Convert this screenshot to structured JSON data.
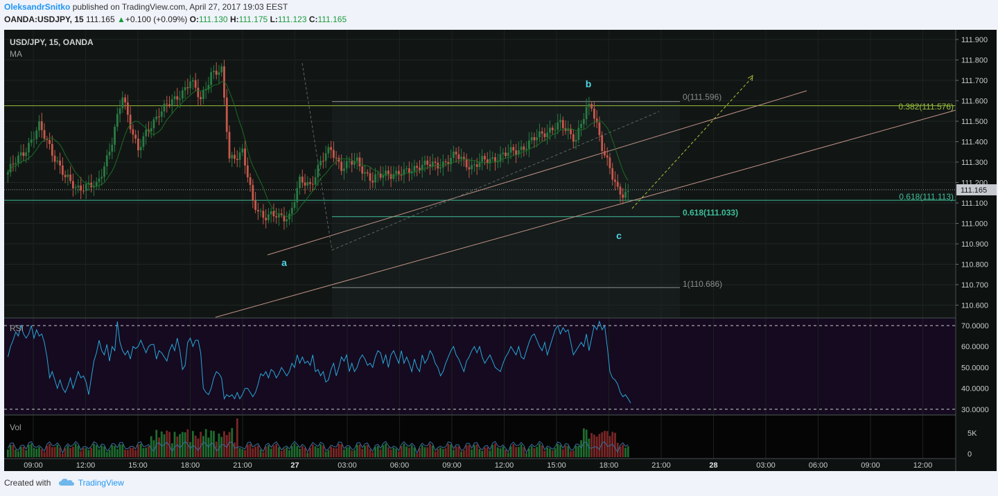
{
  "header": {
    "author": "OleksandrSnitko",
    "published_text": " published on TradingView.com, April 27, 2017 19:03 EEST",
    "symbol": "OANDA:USDJPY, 15",
    "price": "111.165",
    "change": "+0.100 (+0.09%)",
    "o_label": "O:",
    "o_value": "111.130",
    "h_label": "H:",
    "h_value": "111.175",
    "l_label": "L:",
    "l_value": "111.123",
    "c_label": "C:",
    "c_value": "111.165"
  },
  "footer": {
    "created_with": "Created with",
    "brand": "TradingView"
  },
  "colors": {
    "up": "#2a7b43",
    "down": "#c8584b",
    "rsi": "#29a7d9",
    "fib_gold": "#9bbf3c",
    "fib_teal": "#3fbf9a",
    "channel": "#c4948a"
  },
  "chart_data": {
    "type": "candlestick",
    "title": "USD/JPY, 15, OANDA",
    "indicator_label": "MA",
    "price_ylim": [
      110.55,
      111.93
    ],
    "price_ticks": [
      "111.900",
      "111.800",
      "111.700",
      "111.600",
      "111.500",
      "111.400",
      "111.300",
      "111.200",
      "111.100",
      "111.000",
      "110.900",
      "110.800",
      "110.700",
      "110.600"
    ],
    "last_price_label": "111.165",
    "x_ticks": [
      "09:00",
      "12:00",
      "15:00",
      "18:00",
      "21:00",
      "27",
      "03:00",
      "06:00",
      "09:00",
      "12:00",
      "15:00",
      "18:00",
      "21:00",
      "28",
      "03:00",
      "06:00",
      "09:00",
      "12:00"
    ],
    "wave_labels": [
      "a",
      "b",
      "c"
    ],
    "fib_labels": {
      "f0": "0(111.596)",
      "f382": "0.382(111.576)",
      "f618a": "0.618(111.113)",
      "f618b": "0.618(111.033)",
      "f1": "1(110.686)"
    },
    "anchors": [
      [
        0,
        111.25
      ],
      [
        6,
        111.35
      ],
      [
        12,
        111.47
      ],
      [
        16,
        111.38
      ],
      [
        22,
        111.22
      ],
      [
        26,
        111.18
      ],
      [
        34,
        111.18
      ],
      [
        40,
        111.4
      ],
      [
        44,
        111.62
      ],
      [
        50,
        111.36
      ],
      [
        58,
        111.55
      ],
      [
        64,
        111.6
      ],
      [
        70,
        111.7
      ],
      [
        74,
        111.6
      ],
      [
        78,
        111.74
      ],
      [
        82,
        111.74
      ],
      [
        85,
        111.32
      ],
      [
        90,
        111.35
      ],
      [
        94,
        111.1
      ],
      [
        98,
        111.04
      ],
      [
        104,
        111.03
      ],
      [
        108,
        111.04
      ],
      [
        112,
        111.2
      ],
      [
        116,
        111.19
      ],
      [
        120,
        111.3
      ],
      [
        124,
        111.36
      ],
      [
        128,
        111.28
      ],
      [
        134,
        111.3
      ],
      [
        140,
        111.21
      ],
      [
        146,
        111.25
      ],
      [
        152,
        111.24
      ],
      [
        158,
        111.29
      ],
      [
        164,
        111.28
      ],
      [
        172,
        111.33
      ],
      [
        178,
        111.28
      ],
      [
        184,
        111.31
      ],
      [
        192,
        111.34
      ],
      [
        200,
        111.39
      ],
      [
        206,
        111.45
      ],
      [
        212,
        111.48
      ],
      [
        218,
        111.42
      ],
      [
        222,
        111.55
      ],
      [
        224,
        111.57
      ],
      [
        226,
        111.49
      ],
      [
        228,
        111.38
      ],
      [
        230,
        111.3
      ],
      [
        232,
        111.22
      ],
      [
        234,
        111.16
      ],
      [
        236,
        111.15
      ],
      [
        238,
        111.16
      ]
    ],
    "rsi": {
      "label": "RSI",
      "ylim": [
        28,
        72
      ],
      "ticks": [
        "70.0000",
        "60.0000",
        "50.0000",
        "40.0000",
        "30.0000"
      ],
      "bands": [
        70,
        30
      ],
      "values": [
        55,
        60,
        63,
        67,
        65,
        70,
        66,
        64,
        66,
        70,
        64,
        68,
        65,
        66,
        62,
        55,
        45,
        48,
        44,
        40,
        44,
        40,
        38,
        41,
        45,
        40,
        44,
        48,
        45,
        46,
        43,
        37,
        45,
        53,
        57,
        63,
        58,
        56,
        61,
        53,
        60,
        58,
        72,
        62,
        58,
        56,
        58,
        54,
        60,
        59,
        60,
        63,
        60,
        57,
        60,
        61,
        61,
        54,
        58,
        57,
        55,
        53,
        58,
        61,
        58,
        64,
        58,
        49,
        51,
        62,
        64,
        60,
        63,
        63,
        57,
        40,
        38,
        37,
        40,
        45,
        48,
        47,
        45,
        35,
        37,
        36,
        37,
        35,
        38,
        35,
        37,
        40,
        40,
        38,
        36,
        38,
        42,
        47,
        46,
        48,
        45,
        49,
        48,
        45,
        47,
        50,
        48,
        46,
        48,
        52,
        50,
        56,
        52,
        55,
        52,
        53,
        51,
        56,
        48,
        49,
        46,
        48,
        43,
        44,
        49,
        52,
        46,
        50,
        55,
        53,
        56,
        48,
        52,
        48,
        50,
        54,
        56,
        54,
        51,
        52,
        50,
        55,
        58,
        57,
        52,
        56,
        50,
        56,
        58,
        55,
        52,
        58,
        52,
        55,
        52,
        48,
        54,
        50,
        48,
        56,
        52,
        54,
        58,
        56,
        52,
        50,
        46,
        48,
        52,
        55,
        58,
        60,
        56,
        54,
        51,
        48,
        53,
        55,
        58,
        60,
        57,
        60,
        55,
        52,
        54,
        56,
        53,
        50,
        49,
        48,
        52,
        55,
        57,
        60,
        58,
        56,
        60,
        55,
        54,
        58,
        62,
        65,
        66,
        63,
        60,
        58,
        62,
        56,
        60,
        64,
        68,
        70,
        66,
        69,
        67,
        68,
        62,
        56,
        58,
        60,
        62,
        60,
        66,
        58,
        64,
        70,
        68,
        72,
        68,
        70,
        60,
        48,
        45,
        44,
        42,
        38,
        36,
        37,
        35,
        33
      ]
    },
    "volume": {
      "label": "Vol",
      "ticks": [
        "5K",
        "0"
      ]
    }
  }
}
